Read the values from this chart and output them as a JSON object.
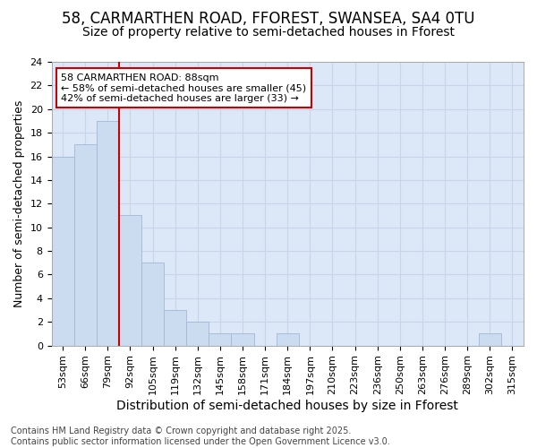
{
  "title1": "58, CARMARTHEN ROAD, FFOREST, SWANSEA, SA4 0TU",
  "title2": "Size of property relative to semi-detached houses in Fforest",
  "xlabel": "Distribution of semi-detached houses by size in Fforest",
  "ylabel": "Number of semi-detached properties",
  "categories": [
    "53sqm",
    "66sqm",
    "79sqm",
    "92sqm",
    "105sqm",
    "119sqm",
    "132sqm",
    "145sqm",
    "158sqm",
    "171sqm",
    "184sqm",
    "197sqm",
    "210sqm",
    "223sqm",
    "236sqm",
    "250sqm",
    "263sqm",
    "276sqm",
    "289sqm",
    "302sqm",
    "315sqm"
  ],
  "values": [
    16,
    17,
    19,
    11,
    7,
    3,
    2,
    1,
    1,
    0,
    1,
    0,
    0,
    0,
    0,
    0,
    0,
    0,
    0,
    1,
    0
  ],
  "bar_color": "#ccdcf0",
  "bar_edge_color": "#a0b8d8",
  "vline_color": "#cc0000",
  "vline_x_index": 2,
  "annotation_text": "58 CARMARTHEN ROAD: 88sqm\n← 58% of semi-detached houses are smaller (45)\n42% of semi-detached houses are larger (33) →",
  "annotation_box_color": "#ffffff",
  "annotation_box_edge": "#cc0000",
  "ylim": [
    0,
    24
  ],
  "yticks": [
    0,
    2,
    4,
    6,
    8,
    10,
    12,
    14,
    16,
    18,
    20,
    22,
    24
  ],
  "grid_color": "#c8d4e8",
  "background_color": "#dce8f8",
  "footer_text": "Contains HM Land Registry data © Crown copyright and database right 2025.\nContains public sector information licensed under the Open Government Licence v3.0.",
  "title1_fontsize": 12,
  "title2_fontsize": 10,
  "ylabel_fontsize": 9,
  "xlabel_fontsize": 10,
  "tick_fontsize": 8,
  "annotation_fontsize": 8,
  "footer_fontsize": 7
}
